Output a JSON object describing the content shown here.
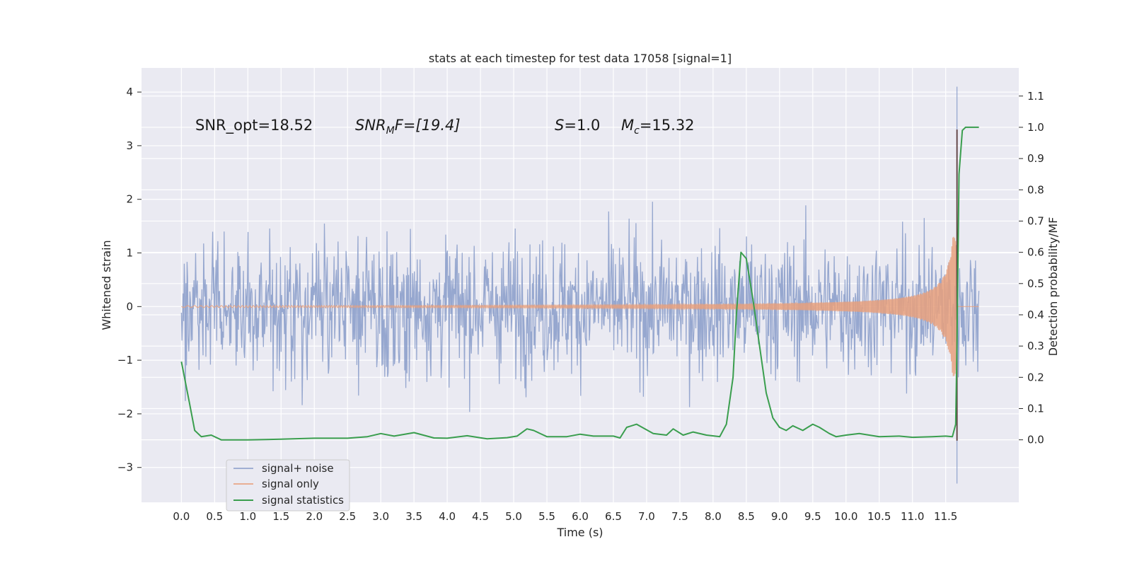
{
  "chart_data": {
    "type": "line",
    "title": "stats at each timestep for test data 17058 [signal=1]",
    "xlabel": "Time (s)",
    "ylabel": "Whitened strain",
    "ylabel_right": "Detection probability/MF",
    "xlim": [
      -0.6,
      12.6
    ],
    "ylim": [
      -3.65,
      4.45
    ],
    "ylim_right": [
      -0.2,
      1.19
    ],
    "x_ticks": [
      "0.0",
      "0.5",
      "1.0",
      "1.5",
      "2.0",
      "2.5",
      "3.0",
      "3.5",
      "4.0",
      "4.5",
      "5.0",
      "5.5",
      "6.0",
      "6.5",
      "7.0",
      "7.5",
      "8.0",
      "8.5",
      "9.0",
      "9.5",
      "10.0",
      "10.5",
      "11.0",
      "11.5"
    ],
    "y_ticks": [
      "4",
      "3",
      "2",
      "1",
      "0",
      "−1",
      "−2",
      "−3"
    ],
    "y_ticks_values": [
      4,
      3,
      2,
      1,
      0,
      -1,
      -2,
      -3
    ],
    "y_right_ticks": [
      "1.1",
      "1.0",
      "0.9",
      "0.8",
      "0.7",
      "0.6",
      "0.5",
      "0.4",
      "0.3",
      "0.2",
      "0.1",
      "0.0"
    ],
    "y_right_ticks_values": [
      1.1,
      1.0,
      0.9,
      0.8,
      0.7,
      0.6,
      0.5,
      0.4,
      0.3,
      0.2,
      0.1,
      0.0
    ],
    "grid": true,
    "legend_position": "bottom-left",
    "annotations": {
      "snr_opt": "SNR_opt=18.52",
      "snr_mf_main": "SNR",
      "snr_mf_sub": "M",
      "snr_mf_rest": "F=[19.4]",
      "s_sym": "S",
      "s_val": "=1.0",
      "mc_sym": "M",
      "mc_sub": "c",
      "mc_val": "=15.32"
    },
    "series": [
      {
        "name": "signal+ noise",
        "color": "#8da0cb",
        "x_range": [
          0.0,
          12.0
        ],
        "envelope_abs_max": 4.1,
        "spike": {
          "x": 11.67,
          "max": 4.1,
          "min": -3.3
        }
      },
      {
        "name": "signal only",
        "color": "#e8a07c",
        "x_range": [
          0.0,
          12.0
        ],
        "chirp_end_s": 11.67,
        "peak_amplitude": 1.3
      },
      {
        "name": "signal statistics",
        "color": "#3a9e4e",
        "axis": "right",
        "x": [
          0.0,
          0.12,
          0.2,
          0.3,
          0.45,
          0.6,
          0.8,
          1.0,
          1.5,
          2.0,
          2.5,
          2.8,
          3.0,
          3.2,
          3.5,
          3.8,
          4.0,
          4.3,
          4.6,
          4.9,
          5.05,
          5.2,
          5.3,
          5.5,
          5.8,
          6.0,
          6.2,
          6.5,
          6.6,
          6.7,
          6.85,
          7.1,
          7.3,
          7.4,
          7.55,
          7.7,
          7.9,
          8.1,
          8.2,
          8.3,
          8.35,
          8.42,
          8.5,
          8.6,
          8.7,
          8.8,
          8.9,
          9.0,
          9.1,
          9.2,
          9.35,
          9.5,
          9.6,
          9.75,
          9.85,
          10.0,
          10.2,
          10.5,
          10.8,
          11.0,
          11.3,
          11.5,
          11.6,
          11.65,
          11.67,
          11.7,
          11.75,
          11.8,
          11.9,
          12.0
        ],
        "values": [
          0.25,
          0.12,
          0.03,
          0.01,
          0.015,
          0.0,
          0.0,
          0.0,
          0.002,
          0.005,
          0.005,
          0.01,
          0.02,
          0.012,
          0.023,
          0.006,
          0.005,
          0.013,
          0.003,
          0.007,
          0.012,
          0.035,
          0.03,
          0.01,
          0.01,
          0.018,
          0.012,
          0.012,
          0.006,
          0.04,
          0.05,
          0.02,
          0.015,
          0.035,
          0.015,
          0.025,
          0.015,
          0.01,
          0.05,
          0.2,
          0.4,
          0.6,
          0.58,
          0.45,
          0.3,
          0.15,
          0.07,
          0.04,
          0.03,
          0.045,
          0.03,
          0.05,
          0.04,
          0.02,
          0.01,
          0.015,
          0.02,
          0.01,
          0.012,
          0.008,
          0.01,
          0.012,
          0.01,
          0.05,
          0.3,
          0.85,
          0.99,
          1.0,
          1.0,
          1.0
        ]
      }
    ]
  }
}
